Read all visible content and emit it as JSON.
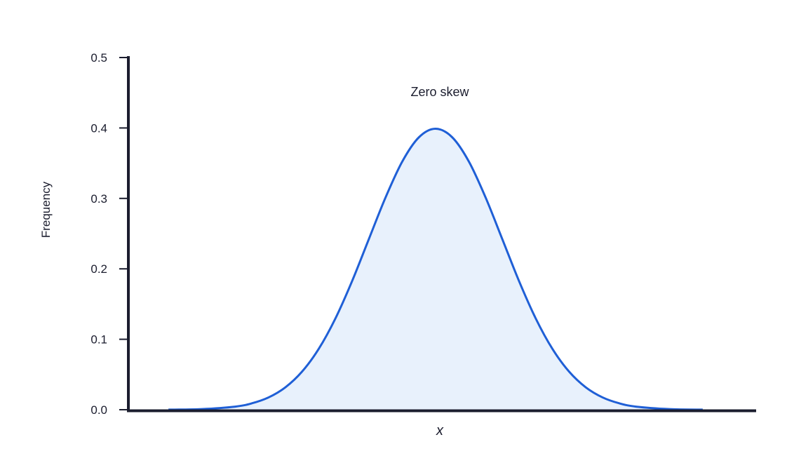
{
  "chart_data": {
    "type": "area",
    "title": "",
    "xlabel": "x",
    "ylabel": "Frequency",
    "annotation": "Zero skew",
    "ylim": [
      0,
      0.5
    ],
    "yticks": [
      "0.0",
      "0.1",
      "0.2",
      "0.3",
      "0.4",
      "0.5"
    ],
    "ytick_values": [
      0.0,
      0.1,
      0.2,
      0.3,
      0.4,
      0.5
    ],
    "xlim": [
      -4.6,
      4.8
    ],
    "grid": false,
    "series": [
      {
        "x": [
          -4.0,
          -3.5,
          -3.0,
          -2.75,
          -2.5,
          -2.25,
          -2.0,
          -1.75,
          -1.5,
          -1.25,
          -1.0,
          -0.75,
          -0.5,
          -0.25,
          0.0,
          0.25,
          0.5,
          0.75,
          1.0,
          1.25,
          1.5,
          1.75,
          2.0,
          2.25,
          2.5,
          2.75,
          3.0,
          3.5,
          4.0
        ],
        "y": [
          0.0001,
          0.0009,
          0.0044,
          0.0091,
          0.0175,
          0.0317,
          0.054,
          0.0863,
          0.1295,
          0.1826,
          0.242,
          0.3011,
          0.3521,
          0.3867,
          0.3989,
          0.3867,
          0.3521,
          0.3011,
          0.242,
          0.1826,
          0.1295,
          0.0863,
          0.054,
          0.0317,
          0.0175,
          0.0091,
          0.0044,
          0.0009,
          0.0001
        ]
      }
    ],
    "colors": {
      "line": "#1f5fd6",
      "fill": "#e8f1fc",
      "axis": "#1b1d2e"
    }
  }
}
